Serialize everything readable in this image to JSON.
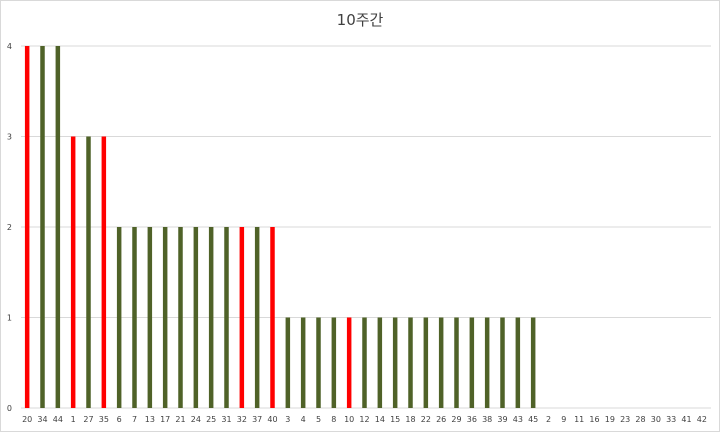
{
  "chart_data": {
    "type": "bar",
    "title": "10주간",
    "xlabel": "",
    "ylabel": "",
    "ylim": [
      0,
      4
    ],
    "yticks": [
      0,
      1,
      2,
      3,
      4
    ],
    "grid": true,
    "legend": "none",
    "categories": [
      "20",
      "34",
      "44",
      "1",
      "27",
      "35",
      "6",
      "7",
      "13",
      "17",
      "21",
      "24",
      "25",
      "31",
      "32",
      "37",
      "40",
      "3",
      "4",
      "5",
      "8",
      "10",
      "12",
      "14",
      "15",
      "18",
      "22",
      "26",
      "29",
      "36",
      "38",
      "39",
      "43",
      "45",
      "2",
      "9",
      "11",
      "16",
      "19",
      "23",
      "28",
      "30",
      "33",
      "41",
      "42"
    ],
    "values": [
      4,
      4,
      4,
      3,
      3,
      3,
      2,
      2,
      2,
      2,
      2,
      2,
      2,
      2,
      2,
      2,
      2,
      1,
      1,
      1,
      1,
      1,
      1,
      1,
      1,
      1,
      1,
      1,
      1,
      1,
      1,
      1,
      1,
      1,
      0,
      0,
      0,
      0,
      0,
      0,
      0,
      0,
      0,
      0,
      0
    ],
    "highlighted": [
      "20",
      "1",
      "35",
      "32",
      "40",
      "10"
    ],
    "colors": {
      "default_bar": "#4f6228",
      "highlight_bar": "#ff0000",
      "grid": "#d9d9d9",
      "text": "#404040"
    }
  }
}
